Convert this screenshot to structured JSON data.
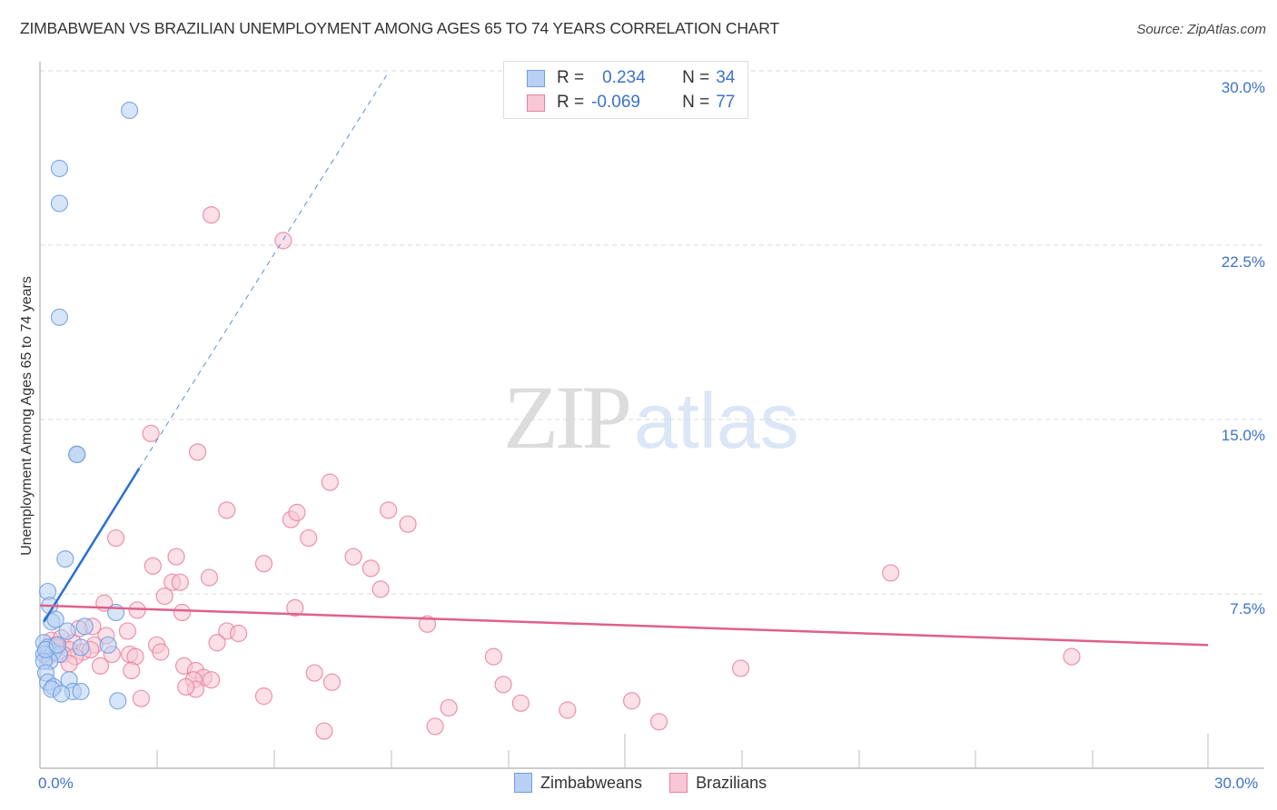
{
  "chart_data": {
    "type": "scatter",
    "title": "ZIMBABWEAN VS BRAZILIAN UNEMPLOYMENT AMONG AGES 65 TO 74 YEARS CORRELATION CHART",
    "source": "Source: ZipAtlas.com",
    "xlabel": "",
    "ylabel": "Unemployment Among Ages 65 to 74 years",
    "xlim": [
      0,
      30
    ],
    "ylim": [
      0,
      30
    ],
    "x_tick_labels": [
      "0.0%",
      "30.0%"
    ],
    "y_tick_labels": [
      "7.5%",
      "15.0%",
      "22.5%",
      "30.0%"
    ],
    "y_ticks": [
      7.5,
      15.0,
      22.5,
      30.0
    ],
    "grid": "horizontal dashed",
    "legend_position": "top-center (stats) and bottom-center (series)",
    "stats": [
      {
        "series": "Zimbabweans",
        "r_label": "R =",
        "r": "0.234",
        "n_label": "N =",
        "n": "34"
      },
      {
        "series": "Brazilians",
        "r_label": "R =",
        "r": "-0.069",
        "n_label": "N =",
        "n": "77"
      }
    ],
    "series": [
      {
        "name": "Zimbabweans",
        "color": "#6f9de0",
        "fill": "#b7d0f3",
        "trend": {
          "x0": 0.1,
          "y0": 6.3,
          "x1": 2.55,
          "y1": 12.9,
          "dashed_to": {
            "x": 8.9,
            "y": 29.8
          }
        },
        "points": [
          [
            2.3,
            28.3
          ],
          [
            0.5,
            25.8
          ],
          [
            0.5,
            24.3
          ],
          [
            0.5,
            19.4
          ],
          [
            0.95,
            13.5
          ],
          [
            0.95,
            13.5
          ],
          [
            0.65,
            9.0
          ],
          [
            0.2,
            7.6
          ],
          [
            0.25,
            7.0
          ],
          [
            0.3,
            6.3
          ],
          [
            0.4,
            6.4
          ],
          [
            0.7,
            5.9
          ],
          [
            1.15,
            6.1
          ],
          [
            1.95,
            6.7
          ],
          [
            0.1,
            5.4
          ],
          [
            0.2,
            5.2
          ],
          [
            0.35,
            5.0
          ],
          [
            0.1,
            4.9
          ],
          [
            0.5,
            4.9
          ],
          [
            0.25,
            4.6
          ],
          [
            0.1,
            4.6
          ],
          [
            1.05,
            5.2
          ],
          [
            1.75,
            5.3
          ],
          [
            0.15,
            4.1
          ],
          [
            0.2,
            3.7
          ],
          [
            0.35,
            3.5
          ],
          [
            0.3,
            3.4
          ],
          [
            0.75,
            3.8
          ],
          [
            0.85,
            3.3
          ],
          [
            1.05,
            3.3
          ],
          [
            0.55,
            3.2
          ],
          [
            2.0,
            2.9
          ],
          [
            0.15,
            5.1
          ],
          [
            0.45,
            5.3
          ]
        ]
      },
      {
        "name": "Brazilians",
        "color": "#e8819e",
        "fill": "#f8c6d4",
        "trend": {
          "x0": 0.0,
          "y0": 7.0,
          "x1": 30.0,
          "y1": 5.3
        },
        "points": [
          [
            4.4,
            23.8
          ],
          [
            6.25,
            22.7
          ],
          [
            2.85,
            14.4
          ],
          [
            4.05,
            13.6
          ],
          [
            7.45,
            12.3
          ],
          [
            4.8,
            11.1
          ],
          [
            6.45,
            10.7
          ],
          [
            6.6,
            11.0
          ],
          [
            8.95,
            11.1
          ],
          [
            9.45,
            10.5
          ],
          [
            1.95,
            9.9
          ],
          [
            6.9,
            9.9
          ],
          [
            3.5,
            9.1
          ],
          [
            8.05,
            9.1
          ],
          [
            5.75,
            8.8
          ],
          [
            2.9,
            8.7
          ],
          [
            8.5,
            8.6
          ],
          [
            4.35,
            8.2
          ],
          [
            3.4,
            8.0
          ],
          [
            3.6,
            8.0
          ],
          [
            8.75,
            7.7
          ],
          [
            21.85,
            8.4
          ],
          [
            3.2,
            7.4
          ],
          [
            1.65,
            7.1
          ],
          [
            2.5,
            6.8
          ],
          [
            3.65,
            6.7
          ],
          [
            6.55,
            6.9
          ],
          [
            1.35,
            6.1
          ],
          [
            1.0,
            6.0
          ],
          [
            9.95,
            6.2
          ],
          [
            1.7,
            5.7
          ],
          [
            2.25,
            5.9
          ],
          [
            4.8,
            5.9
          ],
          [
            5.1,
            5.8
          ],
          [
            0.3,
            5.5
          ],
          [
            0.55,
            5.6
          ],
          [
            0.85,
            5.4
          ],
          [
            1.4,
            5.3
          ],
          [
            3.0,
            5.3
          ],
          [
            4.55,
            5.4
          ],
          [
            0.45,
            5.2
          ],
          [
            0.75,
            5.1
          ],
          [
            1.1,
            5.0
          ],
          [
            3.1,
            5.0
          ],
          [
            0.6,
            4.9
          ],
          [
            0.9,
            4.8
          ],
          [
            1.85,
            4.9
          ],
          [
            2.3,
            4.9
          ],
          [
            2.45,
            4.8
          ],
          [
            11.65,
            4.8
          ],
          [
            26.5,
            4.8
          ],
          [
            0.75,
            4.5
          ],
          [
            1.55,
            4.4
          ],
          [
            3.7,
            4.4
          ],
          [
            4.0,
            4.2
          ],
          [
            2.35,
            4.2
          ],
          [
            4.2,
            3.9
          ],
          [
            4.4,
            3.8
          ],
          [
            3.95,
            3.8
          ],
          [
            7.05,
            4.1
          ],
          [
            7.5,
            3.7
          ],
          [
            11.9,
            3.6
          ],
          [
            18.0,
            4.3
          ],
          [
            4.0,
            3.4
          ],
          [
            3.75,
            3.5
          ],
          [
            5.75,
            3.1
          ],
          [
            2.6,
            3.0
          ],
          [
            12.35,
            2.8
          ],
          [
            10.5,
            2.6
          ],
          [
            13.55,
            2.5
          ],
          [
            15.2,
            2.9
          ],
          [
            10.15,
            1.8
          ],
          [
            15.9,
            2.0
          ],
          [
            7.3,
            1.6
          ],
          [
            1.3,
            5.1
          ],
          [
            0.2,
            4.8
          ],
          [
            0.4,
            5.3
          ]
        ]
      }
    ]
  },
  "header": {
    "title": "ZIMBABWEAN VS BRAZILIAN UNEMPLOYMENT AMONG AGES 65 TO 74 YEARS CORRELATION CHART",
    "source": "Source: ZipAtlas.com"
  },
  "axes": {
    "ylabel": "Unemployment Among Ages 65 to 74 years",
    "y_ticks": [
      "30.0%",
      "22.5%",
      "15.0%",
      "7.5%"
    ],
    "x_min_label": "0.0%",
    "x_max_label": "30.0%"
  },
  "legend": {
    "rows": [
      {
        "r_label": "R =",
        "r_value": "0.234",
        "n_label": "N =",
        "n_value": "34"
      },
      {
        "r_label": "R =",
        "r_value": "-0.069",
        "n_label": "N =",
        "n_value": "77"
      }
    ],
    "bottom": [
      "Zimbabweans",
      "Brazilians"
    ]
  },
  "watermark": {
    "zip": "ZIP",
    "atlas": "atlas"
  },
  "colors": {
    "blue_stroke": "#6f9de0",
    "blue_fill": "#b7d0f3",
    "blue_line": "#2a6fd1",
    "pink_stroke": "#e8819e",
    "pink_fill": "#f8c6d4",
    "pink_line": "#e0608a",
    "tick_text": "#3d72c9"
  }
}
